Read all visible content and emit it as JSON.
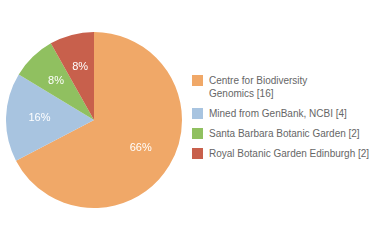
{
  "chart_data": {
    "type": "pie",
    "categories": [
      "Centre for Biodiversity\nGenomics [16]",
      "Mined from GenBank, NCBI [4]",
      "Santa Barbara Botanic Garden [2]",
      "Royal Botanic Garden Edinburgh [2]"
    ],
    "values": [
      66,
      16,
      8,
      8
    ],
    "value_labels": [
      "66%",
      "16%",
      "8%",
      "8%"
    ],
    "colors": [
      "#f0a868",
      "#a8c4e0",
      "#90c060",
      "#c8604c"
    ],
    "data_labels": true,
    "legend": "right"
  }
}
